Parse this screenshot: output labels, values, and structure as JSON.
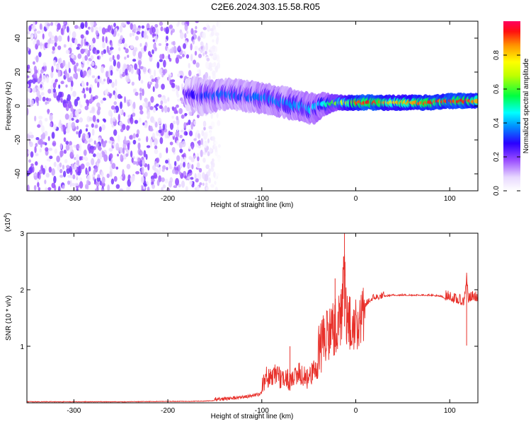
{
  "title": "C2E6.2024.303.15.58.R05",
  "chart_data": [
    {
      "type": "heatmap",
      "xlabel": "Height of straight line (km)",
      "ylabel": "Frequency (Hz)",
      "xlim": [
        -350,
        130
      ],
      "ylim": [
        -50,
        50
      ],
      "xticks": [
        -300,
        -200,
        -100,
        0,
        100
      ],
      "yticks": [
        -40,
        -20,
        0,
        20,
        40
      ],
      "colorbar": {
        "label": "Normalized spectral amplitude",
        "range": [
          0,
          1
        ],
        "ticks": [
          0.0,
          0.2,
          0.4,
          0.6,
          0.8
        ],
        "tick_labels": [
          "0.0",
          "0.2",
          "0.4",
          "0.6",
          "0.8"
        ]
      },
      "noise_region": {
        "x": [
          -350,
          -145
        ],
        "y": [
          -50,
          50
        ],
        "amplitude": 0.15
      },
      "ridge": [
        {
          "x": -180,
          "f": 7,
          "amp": 0.22,
          "spread": 4
        },
        {
          "x": -165,
          "f": 6,
          "amp": 0.3,
          "spread": 5
        },
        {
          "x": -150,
          "f": 6,
          "amp": 0.35,
          "spread": 4
        },
        {
          "x": -135,
          "f": 7,
          "amp": 0.35,
          "spread": 4
        },
        {
          "x": -120,
          "f": 6,
          "amp": 0.33,
          "spread": 4
        },
        {
          "x": -105,
          "f": 5,
          "amp": 0.35,
          "spread": 4
        },
        {
          "x": -90,
          "f": 4,
          "amp": 0.38,
          "spread": 4
        },
        {
          "x": -75,
          "f": 2,
          "amp": 0.36,
          "spread": 4
        },
        {
          "x": -60,
          "f": 0,
          "amp": 0.4,
          "spread": 4
        },
        {
          "x": -45,
          "f": -2,
          "amp": 0.42,
          "spread": 4
        },
        {
          "x": -35,
          "f": 1,
          "amp": 0.45,
          "spread": 3
        },
        {
          "x": -20,
          "f": 2,
          "amp": 0.6,
          "spread": 2
        },
        {
          "x": 0,
          "f": 2,
          "amp": 0.9,
          "spread": 2
        },
        {
          "x": 20,
          "f": 2,
          "amp": 0.95,
          "spread": 2
        },
        {
          "x": 40,
          "f": 2,
          "amp": 0.8,
          "spread": 2
        },
        {
          "x": 60,
          "f": 2,
          "amp": 0.85,
          "spread": 2
        },
        {
          "x": 80,
          "f": 2,
          "amp": 0.92,
          "spread": 2
        },
        {
          "x": 100,
          "f": 3,
          "amp": 0.9,
          "spread": 2
        },
        {
          "x": 115,
          "f": 3,
          "amp": 0.95,
          "spread": 2
        },
        {
          "x": 130,
          "f": 3,
          "amp": 0.85,
          "spread": 2
        }
      ]
    },
    {
      "type": "line",
      "xlabel": "Height of straight line (km)",
      "ylabel": "SNR (10 * v/v)",
      "y_multiplier_label": "(x10",
      "y_multiplier_exp": "4",
      "y_multiplier_close": ")",
      "xlim": [
        -350,
        130
      ],
      "ylim": [
        0,
        3
      ],
      "xticks": [
        -300,
        -200,
        -100,
        0,
        100
      ],
      "yticks": [
        1,
        2,
        3
      ],
      "series": [
        {
          "color": "#e8302a",
          "x": [
            -350,
            -300,
            -250,
            -200,
            -180,
            -160,
            -140,
            -120,
            -110,
            -100,
            -95,
            -90,
            -85,
            -80,
            -75,
            -70,
            -65,
            -60,
            -55,
            -50,
            -45,
            -40,
            -35,
            -30,
            -25,
            -20,
            -15,
            -12,
            -10,
            -8,
            -5,
            0,
            5,
            10,
            15,
            20,
            25,
            30,
            40,
            50,
            60,
            70,
            80,
            90,
            95,
            100,
            105,
            110,
            115,
            118,
            120,
            125,
            130
          ],
          "y": [
            0.02,
            0.02,
            0.02,
            0.03,
            0.03,
            0.04,
            0.06,
            0.1,
            0.15,
            0.2,
            0.45,
            0.3,
            0.5,
            0.35,
            0.4,
            0.3,
            0.45,
            0.5,
            0.4,
            0.35,
            0.6,
            0.55,
            0.9,
            1.0,
            1.2,
            1.4,
            1.6,
            2.9,
            1.5,
            1.4,
            1.35,
            1.4,
            1.55,
            1.7,
            1.8,
            1.85,
            1.85,
            1.88,
            1.9,
            1.9,
            1.9,
            1.9,
            1.9,
            1.88,
            1.85,
            1.85,
            1.8,
            1.78,
            1.75,
            2.2,
            1.8,
            1.85,
            1.82
          ],
          "peak_annotations": [
            {
              "x": -12,
              "y": 3.0
            },
            {
              "x": -22,
              "y": 2.2
            },
            {
              "x": 118,
              "y": 2.25
            },
            {
              "x": -70,
              "y": 1.0
            }
          ]
        }
      ]
    }
  ]
}
